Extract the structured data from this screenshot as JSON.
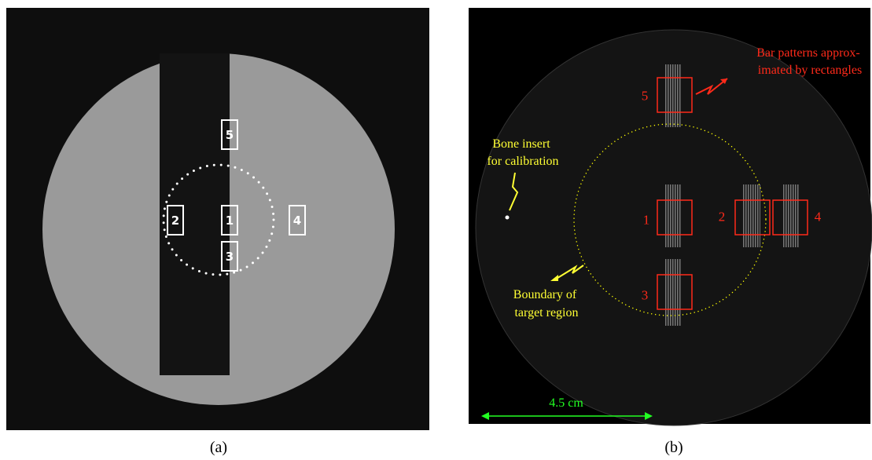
{
  "panels": [
    {
      "caption": "(a)",
      "regions": [
        "5",
        "2",
        "1",
        "4",
        "3"
      ]
    },
    {
      "caption": "(b)",
      "regions": [
        "5",
        "1",
        "2",
        "4",
        "3"
      ],
      "annotations": {
        "bar_patterns": [
          "Bar patterns approx-",
          "imated by rectangles"
        ],
        "bone_insert": [
          "Bone insert",
          "for calibration"
        ],
        "boundary": [
          "Boundary of",
          "target region"
        ],
        "scale": "4.5 cm"
      }
    }
  ]
}
